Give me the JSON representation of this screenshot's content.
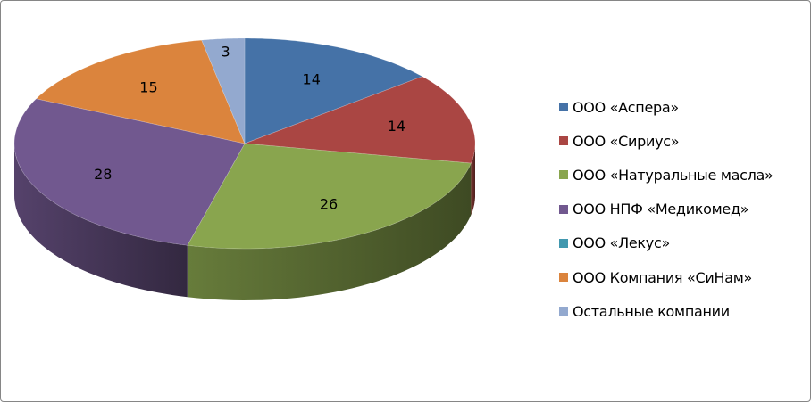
{
  "chart_data": {
    "type": "pie",
    "style": "3d",
    "categories": [
      "ООО «Аспера»",
      "ООО «Сириус»",
      "ООО «Натуральные масла»",
      "ООО НПФ «Медикомед»",
      "ООО «Лекус»",
      "ООО Компания «СиНам»",
      "Остальные компании"
    ],
    "values": [
      14,
      14,
      26,
      28,
      0,
      15,
      3
    ],
    "colors": [
      "#4572A7",
      "#AA4643",
      "#89A54E",
      "#71588F",
      "#4198AF",
      "#DB843D",
      "#93A9CF"
    ],
    "data_labels": [
      "14",
      "14",
      "26",
      "28",
      "",
      "15",
      "3"
    ],
    "legend_position": "right"
  }
}
